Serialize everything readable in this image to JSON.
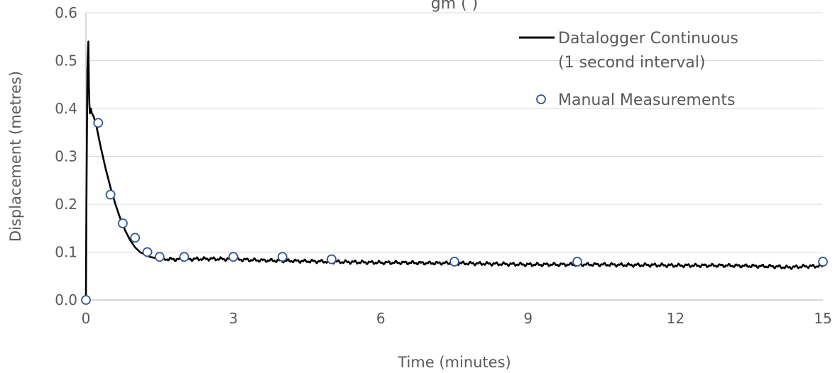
{
  "chart_data": {
    "type": "line",
    "title_fragment": "gm    ( )",
    "xlabel": "Time (minutes)",
    "ylabel": "Displacement (metres)",
    "xlim": [
      0,
      15
    ],
    "ylim": [
      0,
      0.6
    ],
    "x_ticks": [
      "0",
      "3",
      "6",
      "9",
      "12",
      "15"
    ],
    "y_ticks": [
      "0.0",
      "0.1",
      "0.2",
      "0.3",
      "0.4",
      "0.5",
      "0.6"
    ],
    "grid": true,
    "legend_position": "top-right",
    "colors": {
      "line": "#000000",
      "marker": "#2f5597"
    },
    "series": [
      {
        "name": "Datalogger Continuous",
        "name_line2": "(1 second interval)",
        "kind": "line",
        "x": [
          0,
          0.01,
          0.03,
          0.05,
          0.06,
          0.07,
          0.08,
          0.1,
          0.12,
          0.15,
          0.2,
          0.25,
          0.3,
          0.4,
          0.5,
          0.6,
          0.7,
          0.8,
          0.9,
          1.0,
          1.1,
          1.2,
          1.3,
          1.4,
          1.5,
          1.75,
          2.0,
          2.5,
          3.0,
          3.5,
          4.0,
          4.5,
          5.0,
          5.5,
          6.0,
          6.5,
          7.0,
          7.5,
          8.0,
          8.5,
          9.0,
          9.5,
          10.0,
          10.5,
          11.0,
          11.5,
          12.0,
          12.5,
          13.0,
          13.5,
          14.0,
          14.3,
          14.6,
          15.0
        ],
        "y": [
          0,
          0.2,
          0.48,
          0.54,
          0.45,
          0.41,
          0.39,
          0.4,
          0.39,
          0.385,
          0.37,
          0.345,
          0.32,
          0.275,
          0.235,
          0.2,
          0.17,
          0.145,
          0.125,
          0.11,
          0.1,
          0.095,
          0.09,
          0.088,
          0.086,
          0.085,
          0.085,
          0.086,
          0.085,
          0.083,
          0.082,
          0.081,
          0.08,
          0.079,
          0.078,
          0.078,
          0.077,
          0.077,
          0.076,
          0.075,
          0.074,
          0.074,
          0.074,
          0.074,
          0.073,
          0.073,
          0.072,
          0.072,
          0.072,
          0.071,
          0.07,
          0.068,
          0.07,
          0.071
        ]
      },
      {
        "name": "Manual Measurements",
        "kind": "scatter",
        "x": [
          0,
          0.25,
          0.5,
          0.75,
          1.0,
          1.25,
          1.5,
          2.0,
          3.0,
          4.0,
          5.0,
          7.5,
          10.0,
          15.0
        ],
        "y": [
          0,
          0.37,
          0.22,
          0.16,
          0.13,
          0.1,
          0.09,
          0.09,
          0.09,
          0.09,
          0.085,
          0.08,
          0.08,
          0.08
        ]
      }
    ]
  }
}
